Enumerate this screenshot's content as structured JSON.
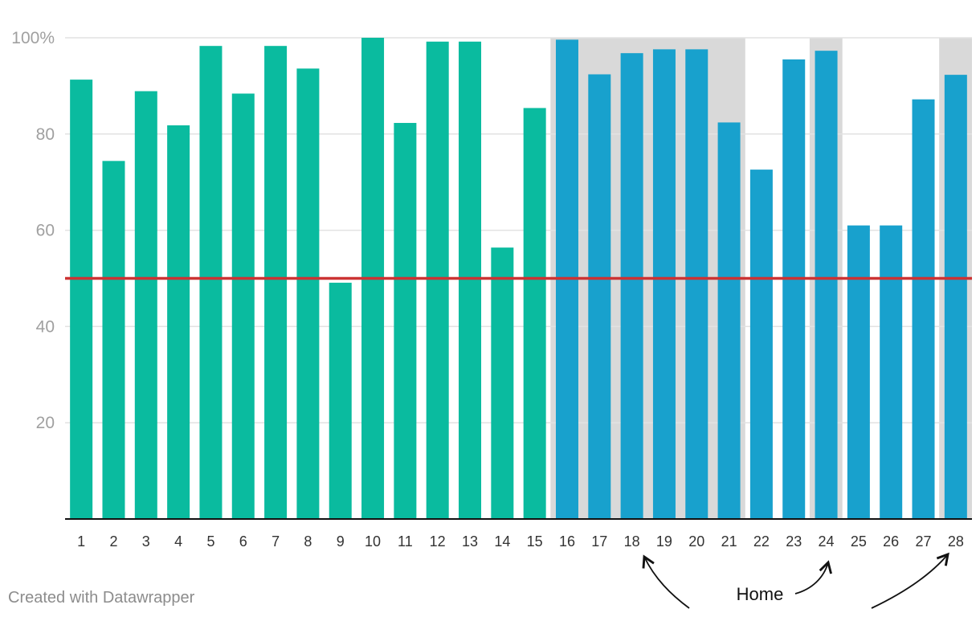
{
  "chart_data": {
    "type": "bar",
    "categories": [
      "1",
      "2",
      "3",
      "4",
      "5",
      "6",
      "7",
      "8",
      "9",
      "10",
      "11",
      "12",
      "13",
      "14",
      "15",
      "16",
      "17",
      "18",
      "19",
      "20",
      "21",
      "22",
      "23",
      "24",
      "25",
      "26",
      "27",
      "28"
    ],
    "values": [
      91.3,
      74.4,
      88.9,
      81.8,
      98.3,
      88.4,
      98.3,
      93.6,
      49.1,
      100,
      82.3,
      99.2,
      99.2,
      56.4,
      85.4,
      99.6,
      92.4,
      96.8,
      97.6,
      97.6,
      82.4,
      72.6,
      95.5,
      97.3,
      61.0,
      61.0,
      87.2,
      92.3
    ],
    "y_ticks": [
      {
        "value": 100,
        "label": "100%"
      },
      {
        "value": 80,
        "label": "80"
      },
      {
        "value": 60,
        "label": "60"
      },
      {
        "value": 40,
        "label": "40"
      },
      {
        "value": 20,
        "label": "20"
      }
    ],
    "ylim": [
      0,
      100
    ],
    "reference_line": {
      "value": 50,
      "color": "#cc3333"
    },
    "series_colors": {
      "first_half": "#0abb9f",
      "second_half": "#18a1cd"
    },
    "color_split_after_category": "15",
    "highlight_bands": [
      {
        "from": "16",
        "to": "21"
      },
      {
        "from": "24",
        "to": "24"
      },
      {
        "from": "28",
        "to": "28"
      }
    ],
    "highlight_color": "#d9d9d9",
    "annotation": {
      "text": "Home",
      "points_to": [
        "18",
        "24",
        "28"
      ]
    },
    "grid": true
  },
  "footer": {
    "credit": "Created with Datawrapper"
  }
}
